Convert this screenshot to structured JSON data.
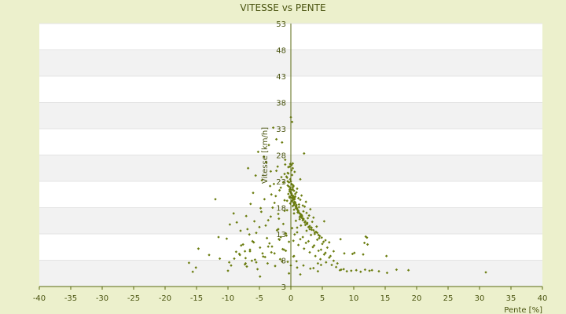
{
  "chart_data": {
    "type": "scatter",
    "title": "VITESSE vs PENTE",
    "xlabel": "Pente [%]",
    "ylabel": "Vitesse [km/h]",
    "xlim": [
      -40,
      40
    ],
    "ylim": [
      3,
      53
    ],
    "x_ticks": [
      -40,
      -35,
      -30,
      -25,
      -20,
      -15,
      -10,
      -5,
      0,
      5,
      10,
      15,
      20,
      25,
      30,
      35,
      40
    ],
    "x_tick_labels": [
      "-40",
      "-35",
      "-30",
      "-25",
      "-20",
      "-15",
      "-10",
      "-5",
      "0",
      "5",
      "10",
      "15",
      "20",
      "25",
      "30",
      "35",
      "40"
    ],
    "y_ticks": [
      3,
      8,
      13,
      18,
      23,
      28,
      33,
      38,
      43,
      48,
      53
    ],
    "y_tick_labels": [
      "3",
      "8",
      "13",
      "18",
      "23",
      "28",
      "33",
      "38",
      "43",
      "48",
      "53"
    ],
    "grid": true,
    "legend": "none",
    "colors": {
      "page_background": "#ecf0cc",
      "plot_background": "#ffffff",
      "band": "#f2f2f2",
      "axis": "#5a6a10",
      "marker": "#6b7d10"
    },
    "series": [
      {
        "x": [
          -16.2,
          -15.6,
          -15.1,
          -14.7,
          -13.0,
          -11.5,
          -10.2,
          -9.7,
          -9.1,
          -8.6,
          -8.0,
          -7.6,
          -7.1,
          -6.4,
          -6.0,
          -5.5,
          -4.8,
          -4.2,
          -3.6,
          -3.3,
          -2.9,
          -2.4,
          -2.0,
          -1.6,
          -1.0,
          -0.6,
          -8.7,
          -7.9,
          -7.2,
          -6.6,
          -5.9,
          -5.0,
          -4.5,
          -3.8,
          -3.0,
          -2.2,
          -1.8,
          -1.2,
          -0.7,
          -9.8,
          -9.0,
          -8.1,
          -7.3,
          -6.5,
          -5.7,
          -4.9,
          -4.1,
          -3.4,
          -2.6,
          -1.9,
          -1.3,
          -0.8,
          -0.3,
          -7.0,
          -6.2,
          -5.3,
          -4.4,
          -3.7,
          -3.1,
          -2.5,
          -1.7,
          -1.1,
          -0.5,
          -6.8,
          -5.6,
          -4.6,
          -3.9,
          -3.2,
          -2.7,
          -2.1,
          -1.5,
          -0.9,
          -0.4,
          -5.2,
          -4.3,
          -3.5,
          -2.8,
          -2.3,
          -1.4,
          -6.9,
          -5.8,
          -4.7,
          -4.0,
          -3.2,
          -2.6,
          -1.9,
          -1.0,
          -0.2,
          -3.1,
          -1.8,
          -0.7,
          -2.3,
          -0.9,
          0.0,
          -1.2,
          -0.5,
          0.2,
          0.3,
          -0.4,
          0.1,
          0.6,
          -0.2,
          -0.6,
          0.4,
          0.9,
          1.3,
          -0.1,
          0.5,
          1.1,
          1.6,
          0.8,
          1.4,
          2.0,
          0.7,
          1.2,
          1.9,
          2.5,
          0.2,
          0.9,
          1.5,
          2.2,
          2.9,
          0.4,
          1.0,
          1.7,
          2.4,
          3.1,
          3.6,
          0.6,
          1.3,
          2.0,
          2.7,
          3.4,
          4.1,
          0.3,
          1.1,
          1.8,
          2.6,
          3.3,
          4.0,
          4.6,
          0.5,
          1.4,
          2.3,
          3.0,
          3.8,
          4.5,
          5.2,
          0.8,
          1.6,
          2.5,
          3.2,
          4.2,
          5.0,
          5.8,
          0.2,
          1.0,
          1.9,
          2.8,
          3.7,
          4.8,
          5.5,
          6.3,
          0.6,
          1.5,
          2.4,
          3.5,
          4.4,
          5.3,
          6.1,
          6.8,
          7.4,
          0.4,
          1.2,
          2.1,
          3.0,
          3.9,
          4.7,
          5.6,
          6.5,
          7.2,
          8.0,
          0.9,
          2.0,
          3.1,
          4.3,
          0.1,
          0.3,
          0.5,
          0.2,
          -0.1,
          0.4,
          0.0,
          0.6,
          0.3,
          -0.3,
          0.7,
          0.1,
          0.5,
          -0.2,
          0.8,
          0.2,
          1.0,
          -0.4,
          0.6,
          0.0,
          1.2,
          0.3,
          -0.5,
          0.9,
          0.4,
          1.5,
          -0.1,
          0.7,
          0.2,
          1.8,
          0.5,
          -0.6,
          1.1,
          0.0,
          1.4,
          0.3,
          2.0,
          -0.3,
          0.8,
          0.1,
          1.6,
          0.6,
          2.3,
          -0.2,
          1.0,
          0.4,
          1.9,
          0.7,
          2.6,
          0.2,
          1.3,
          3.0,
          0.5,
          1.7,
          0.9,
          2.2,
          1.2,
          2.8,
          1.5,
          3.3,
          2.0,
          3.8,
          2.5,
          4.4,
          3.0,
          4.9,
          3.6,
          5.5,
          4.2,
          6.1,
          2.1,
          1.5,
          1.0,
          0.5,
          -0.3,
          0.0,
          -0.2,
          0.1,
          0.3,
          -0.1,
          1.5,
          -1.0,
          -0.5,
          0.2,
          7.8,
          8.4,
          8.9,
          9.6,
          10.4,
          11.1,
          11.8,
          12.5,
          12.9,
          14.0,
          15.3,
          16.8,
          18.7,
          31.0,
          11.5,
          11.9,
          12.1,
          11.7,
          12.2,
          10.1,
          9.8,
          8.5,
          7.9,
          6.8,
          15.2,
          5.3,
          4.8,
          4.3,
          3.6,
          -2.0,
          -3.6,
          -4.9,
          -5.5,
          -6.1,
          -7.2,
          -8.2,
          -9.5,
          -10.0,
          -11.3,
          -1.6,
          -0.8,
          0.4,
          1.0,
          -12.0,
          -6.5,
          -7.3,
          -1.4
        ],
        "y": [
          7.5,
          5.8,
          6.6,
          10.2,
          9.0,
          12.4,
          12.1,
          14.8,
          16.9,
          15.2,
          13.6,
          11.0,
          16.4,
          18.7,
          20.8,
          13.2,
          17.9,
          19.6,
          15.6,
          22.1,
          18.0,
          20.2,
          16.8,
          21.8,
          19.4,
          17.5,
          9.6,
          10.8,
          8.4,
          12.9,
          11.4,
          14.3,
          9.3,
          12.2,
          10.6,
          13.7,
          11.9,
          14.9,
          12.7,
          7.6,
          8.3,
          9.0,
          7.2,
          9.7,
          8.1,
          10.4,
          8.6,
          11.2,
          9.3,
          12.0,
          10.1,
          13.1,
          11.5,
          6.8,
          7.9,
          6.3,
          8.7,
          7.4,
          9.5,
          6.9,
          8.2,
          10.0,
          7.7,
          25.5,
          24.1,
          23.2,
          26.6,
          24.9,
          22.5,
          25.8,
          23.8,
          27.1,
          24.5,
          28.6,
          27.7,
          29.9,
          33.2,
          31.0,
          30.4,
          13.9,
          15.4,
          17.2,
          14.6,
          16.3,
          18.9,
          15.9,
          17.4,
          19.9,
          20.5,
          21.3,
          23.9,
          25.0,
          26.2,
          35.2,
          22.8,
          24.6,
          34.3,
          26.4,
          25.7,
          25.1,
          24.8,
          20.1,
          19.3,
          19.0,
          18.5,
          18.1,
          18.8,
          17.6,
          17.1,
          16.7,
          17.9,
          16.2,
          15.7,
          20.6,
          19.8,
          18.4,
          17.0,
          21.4,
          20.9,
          19.5,
          18.2,
          16.5,
          22.2,
          21.6,
          20.3,
          19.1,
          17.7,
          16.1,
          19.9,
          18.6,
          17.3,
          16.0,
          15.3,
          14.4,
          18.3,
          17.1,
          16.0,
          15.1,
          14.2,
          13.4,
          12.6,
          16.9,
          15.8,
          14.7,
          13.9,
          13.0,
          12.2,
          11.5,
          15.5,
          14.6,
          13.6,
          12.8,
          11.9,
          11.1,
          10.4,
          14.1,
          13.3,
          12.4,
          11.6,
          10.8,
          10.0,
          9.4,
          8.8,
          12.9,
          12.0,
          11.3,
          10.5,
          9.8,
          9.1,
          8.5,
          7.9,
          7.4,
          11.7,
          10.9,
          10.2,
          9.5,
          8.8,
          8.2,
          7.6,
          7.1,
          6.7,
          6.2,
          7.8,
          7.0,
          6.4,
          5.9,
          22.5,
          21.9,
          21.2,
          20.4,
          23.4,
          22.0,
          20.8,
          19.6,
          21.5,
          22.8,
          20.1,
          19.2,
          18.7,
          21.1,
          18.2,
          19.9,
          17.8,
          20.6,
          18.9,
          23.0,
          17.3,
          19.4,
          22.2,
          18.0,
          20.2,
          16.8,
          21.7,
          19.0,
          22.4,
          16.4,
          18.5,
          23.7,
          17.5,
          21.0,
          16.9,
          19.7,
          15.9,
          22.0,
          18.3,
          20.7,
          16.2,
          19.1,
          15.4,
          21.4,
          17.7,
          20.0,
          15.6,
          18.8,
          14.9,
          20.3,
          17.0,
          14.5,
          19.6,
          16.6,
          18.1,
          15.2,
          17.4,
          14.3,
          16.4,
          13.8,
          15.7,
          13.3,
          15.0,
          12.8,
          14.3,
          12.3,
          13.7,
          11.8,
          13.2,
          11.4,
          28.3,
          5.3,
          6.6,
          8.8,
          5.5,
          7.0,
          25.8,
          26.1,
          25.5,
          26.3,
          23.4,
          24.4,
          23.0,
          24.2,
          6.1,
          6.3,
          5.9,
          6.0,
          6.1,
          5.8,
          6.2,
          6.0,
          6.1,
          5.9,
          5.6,
          6.2,
          6.1,
          5.7,
          9.1,
          12.5,
          12.3,
          11.3,
          11.0,
          9.4,
          9.2,
          9.3,
          12.0,
          9.7,
          8.8,
          15.4,
          7.1,
          7.4,
          6.5,
          13.9,
          10.6,
          4.9,
          7.6,
          11.6,
          7.4,
          9.2,
          7.0,
          6.0,
          8.3,
          12.4,
          9.8,
          8.7,
          14.2,
          19.6,
          10.0,
          9.7,
          7.8
        ]
      }
    ]
  }
}
